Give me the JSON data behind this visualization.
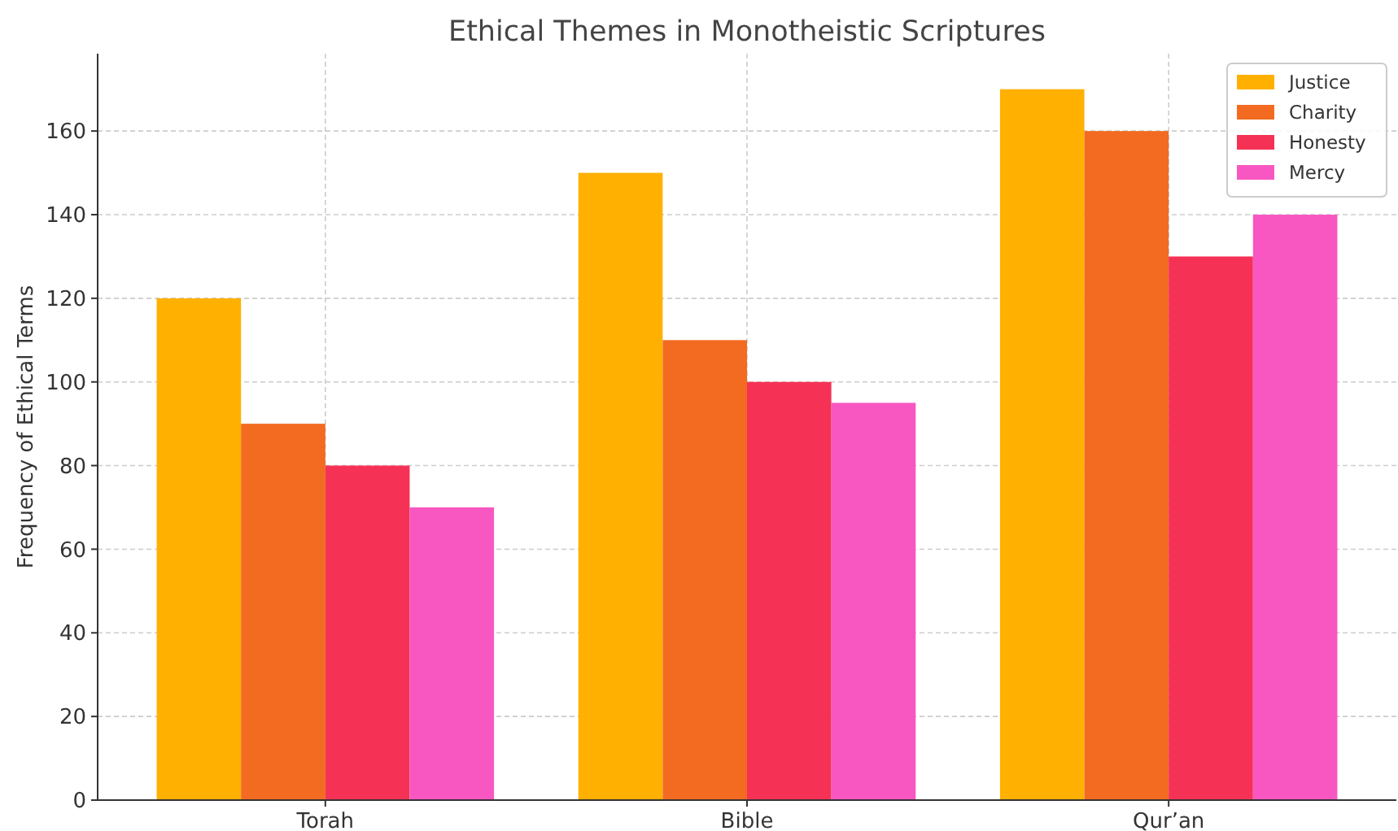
{
  "chart_data": {
    "type": "bar",
    "title": "Ethical Themes in Monotheistic Scriptures",
    "ylabel": "Frequency of Ethical Terms",
    "categories": [
      "Torah",
      "Bible",
      "Qur’an"
    ],
    "series": [
      {
        "name": "Justice",
        "color": "#ffb000",
        "values": [
          120,
          150,
          170
        ]
      },
      {
        "name": "Charity",
        "color": "#f26b21",
        "values": [
          90,
          110,
          160
        ]
      },
      {
        "name": "Honesty",
        "color": "#f53255",
        "values": [
          80,
          100,
          130
        ]
      },
      {
        "name": "Mercy",
        "color": "#f857c1",
        "values": [
          70,
          95,
          140
        ]
      }
    ],
    "ylim": [
      0,
      178.5
    ],
    "yticks": [
      0,
      20,
      40,
      60,
      80,
      100,
      120,
      140,
      160
    ],
    "grid": true,
    "legend": "top right"
  }
}
